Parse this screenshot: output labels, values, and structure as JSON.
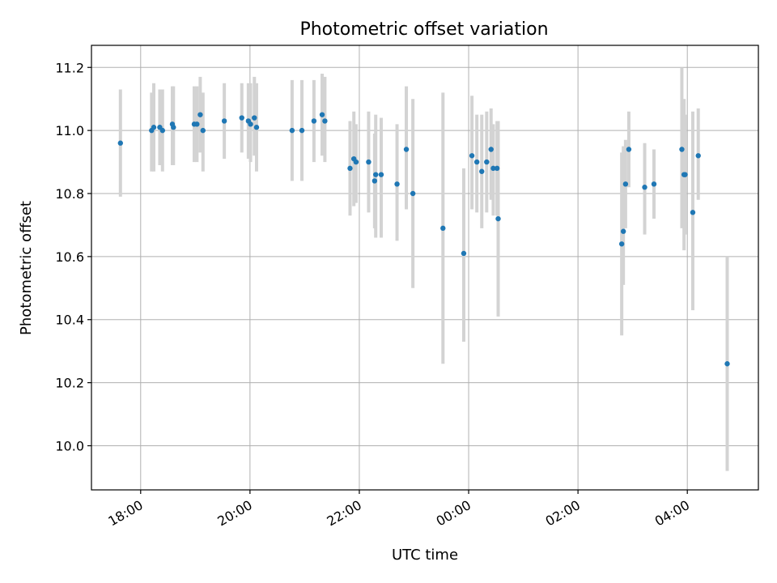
{
  "chart_data": {
    "type": "scatter",
    "title": "Photometric offset variation",
    "xlabel": "UTC time",
    "ylabel": "Photometric offset",
    "x_unit": "hours after 00:00 (17:00 = -7.0)",
    "xlim": [
      -6.9,
      5.3
    ],
    "ylim": [
      9.86,
      11.27
    ],
    "x_ticks": [
      -6,
      -4,
      -2,
      0,
      2,
      4
    ],
    "x_tick_labels": [
      "18:00",
      "20:00",
      "22:00",
      "00:00",
      "02:00",
      "04:00"
    ],
    "y_ticks": [
      10.0,
      10.2,
      10.4,
      10.6,
      10.8,
      11.0,
      11.2
    ],
    "y_tick_labels": [
      "10.0",
      "10.2",
      "10.4",
      "10.6",
      "10.8",
      "11.0",
      "11.2"
    ],
    "grid": true,
    "colors": {
      "point": "#1f77b4",
      "errorbar": "#d3d3d3",
      "grid": "#b0b0b0",
      "axes": "#000000"
    },
    "series": [
      {
        "name": "offset",
        "points": [
          {
            "x": -6.37,
            "y": 10.96,
            "lo": 10.79,
            "hi": 11.13
          },
          {
            "x": -5.8,
            "y": 11.0,
            "lo": 10.87,
            "hi": 11.12
          },
          {
            "x": -5.76,
            "y": 11.01,
            "lo": 10.87,
            "hi": 11.15
          },
          {
            "x": -5.65,
            "y": 11.01,
            "lo": 10.89,
            "hi": 11.13
          },
          {
            "x": -5.6,
            "y": 11.0,
            "lo": 10.87,
            "hi": 11.13
          },
          {
            "x": -5.42,
            "y": 11.02,
            "lo": 10.89,
            "hi": 11.14
          },
          {
            "x": -5.4,
            "y": 11.01,
            "lo": 10.89,
            "hi": 11.14
          },
          {
            "x": -5.02,
            "y": 11.02,
            "lo": 10.9,
            "hi": 11.14
          },
          {
            "x": -4.97,
            "y": 11.02,
            "lo": 10.9,
            "hi": 11.14
          },
          {
            "x": -4.91,
            "y": 11.05,
            "lo": 10.93,
            "hi": 11.17
          },
          {
            "x": -4.86,
            "y": 11.0,
            "lo": 10.87,
            "hi": 11.12
          },
          {
            "x": -4.47,
            "y": 11.03,
            "lo": 10.91,
            "hi": 11.15
          },
          {
            "x": -4.15,
            "y": 11.04,
            "lo": 10.93,
            "hi": 11.15
          },
          {
            "x": -4.03,
            "y": 11.03,
            "lo": 10.91,
            "hi": 11.15
          },
          {
            "x": -3.99,
            "y": 11.02,
            "lo": 10.9,
            "hi": 11.15
          },
          {
            "x": -3.92,
            "y": 11.04,
            "lo": 10.92,
            "hi": 11.17
          },
          {
            "x": -3.88,
            "y": 11.01,
            "lo": 10.87,
            "hi": 11.15
          },
          {
            "x": -3.23,
            "y": 11.0,
            "lo": 10.84,
            "hi": 11.16
          },
          {
            "x": -3.05,
            "y": 11.0,
            "lo": 10.84,
            "hi": 11.16
          },
          {
            "x": -2.83,
            "y": 11.03,
            "lo": 10.9,
            "hi": 11.16
          },
          {
            "x": -2.68,
            "y": 11.05,
            "lo": 10.92,
            "hi": 11.18
          },
          {
            "x": -2.63,
            "y": 11.03,
            "lo": 10.9,
            "hi": 11.17
          },
          {
            "x": -2.17,
            "y": 10.88,
            "lo": 10.73,
            "hi": 11.03
          },
          {
            "x": -2.1,
            "y": 10.91,
            "lo": 10.76,
            "hi": 11.06
          },
          {
            "x": -2.06,
            "y": 10.9,
            "lo": 10.77,
            "hi": 11.02
          },
          {
            "x": -1.83,
            "y": 10.9,
            "lo": 10.74,
            "hi": 11.06
          },
          {
            "x": -1.72,
            "y": 10.84,
            "lo": 10.69,
            "hi": 10.99
          },
          {
            "x": -1.7,
            "y": 10.86,
            "lo": 10.66,
            "hi": 11.05
          },
          {
            "x": -1.6,
            "y": 10.86,
            "lo": 10.66,
            "hi": 11.04
          },
          {
            "x": -1.31,
            "y": 10.83,
            "lo": 10.65,
            "hi": 11.02
          },
          {
            "x": -1.14,
            "y": 10.94,
            "lo": 10.75,
            "hi": 11.14
          },
          {
            "x": -1.02,
            "y": 10.8,
            "lo": 10.5,
            "hi": 11.1
          },
          {
            "x": -0.47,
            "y": 10.69,
            "lo": 10.26,
            "hi": 11.12
          },
          {
            "x": -0.09,
            "y": 10.61,
            "lo": 10.33,
            "hi": 10.88
          },
          {
            "x": 0.06,
            "y": 10.92,
            "lo": 10.75,
            "hi": 11.11
          },
          {
            "x": 0.15,
            "y": 10.9,
            "lo": 10.74,
            "hi": 11.05
          },
          {
            "x": 0.24,
            "y": 10.87,
            "lo": 10.69,
            "hi": 11.05
          },
          {
            "x": 0.33,
            "y": 10.9,
            "lo": 10.74,
            "hi": 11.06
          },
          {
            "x": 0.41,
            "y": 10.94,
            "lo": 10.78,
            "hi": 11.07
          },
          {
            "x": 0.45,
            "y": 10.88,
            "lo": 10.73,
            "hi": 11.02
          },
          {
            "x": 0.52,
            "y": 10.88,
            "lo": 10.73,
            "hi": 11.03
          },
          {
            "x": 0.54,
            "y": 10.72,
            "lo": 10.41,
            "hi": 11.03
          },
          {
            "x": 2.8,
            "y": 10.64,
            "lo": 10.35,
            "hi": 10.93
          },
          {
            "x": 2.83,
            "y": 10.68,
            "lo": 10.51,
            "hi": 10.95
          },
          {
            "x": 2.87,
            "y": 10.83,
            "lo": 10.69,
            "hi": 10.97
          },
          {
            "x": 2.93,
            "y": 10.94,
            "lo": 10.82,
            "hi": 11.06
          },
          {
            "x": 3.22,
            "y": 10.82,
            "lo": 10.67,
            "hi": 10.96
          },
          {
            "x": 3.39,
            "y": 10.83,
            "lo": 10.72,
            "hi": 10.94
          },
          {
            "x": 3.9,
            "y": 10.94,
            "lo": 10.69,
            "hi": 11.2
          },
          {
            "x": 3.94,
            "y": 10.86,
            "lo": 10.62,
            "hi": 11.1
          },
          {
            "x": 3.96,
            "y": 10.86,
            "lo": 10.67,
            "hi": 11.05
          },
          {
            "x": 4.1,
            "y": 10.74,
            "lo": 10.43,
            "hi": 11.06
          },
          {
            "x": 4.2,
            "y": 10.92,
            "lo": 10.78,
            "hi": 11.07
          },
          {
            "x": 4.73,
            "y": 10.26,
            "lo": 9.92,
            "hi": 10.6
          }
        ]
      }
    ]
  }
}
